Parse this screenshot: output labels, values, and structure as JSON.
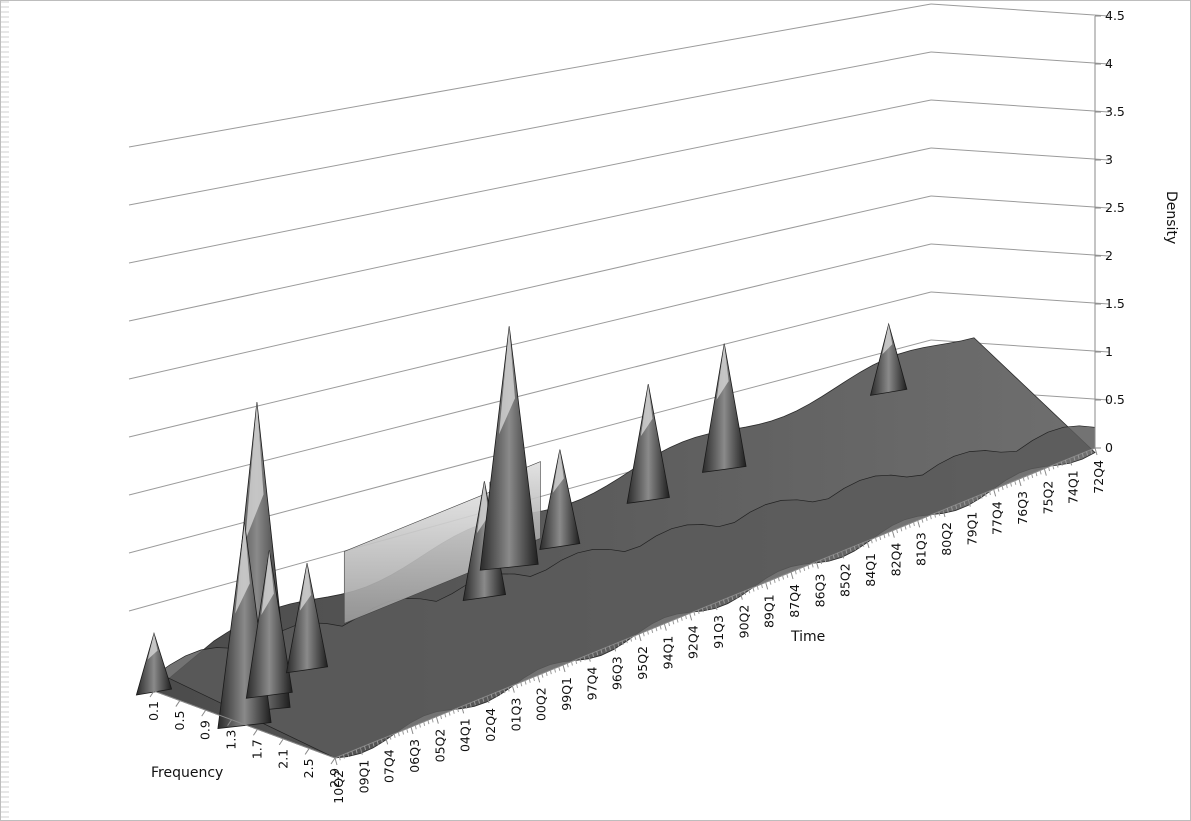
{
  "chart_data": {
    "type": "surface3d",
    "title": "",
    "xlabel": "Frequency",
    "ylabel": "Time",
    "zlabel": "Density",
    "zlim": [
      0,
      4.5
    ],
    "z_ticks": [
      "0",
      "0.5",
      "1",
      "1.5",
      "2",
      "2.5",
      "3",
      "3.5",
      "4",
      "4.5"
    ],
    "frequency_ticks": [
      "0.1",
      "0.5",
      "0.9",
      "1.3",
      "1.7",
      "2.1",
      "2.5",
      "2.9"
    ],
    "time_ticks": [
      "10Q2",
      "09Q1",
      "07Q4",
      "06Q3",
      "05Q2",
      "04Q1",
      "02Q4",
      "01Q3",
      "00Q2",
      "99Q1",
      "97Q4",
      "96Q3",
      "95Q2",
      "94Q1",
      "92Q4",
      "91Q3",
      "90Q2",
      "89Q1",
      "87Q4",
      "86Q3",
      "85Q2",
      "84Q1",
      "82Q4",
      "81Q3",
      "80Q2",
      "79Q1",
      "77Q4",
      "76Q3",
      "75Q2",
      "74Q1",
      "72Q4"
    ],
    "peaks": [
      {
        "frequency": 0.1,
        "time": "10Q2",
        "density": 0.6
      },
      {
        "frequency": 1.3,
        "time": "09Q1",
        "density": 3.2
      },
      {
        "frequency": 1.5,
        "time": "08Q3",
        "density": 2.1
      },
      {
        "frequency": 1.1,
        "time": "07Q4",
        "density": 1.5
      },
      {
        "frequency": 0.9,
        "time": "05Q2",
        "density": 1.1
      },
      {
        "frequency": 0.9,
        "time": "96Q3",
        "density": 1.2
      },
      {
        "frequency": 0.5,
        "time": "94Q1",
        "density": 2.5
      },
      {
        "frequency": 0.5,
        "time": "91Q3",
        "density": 1.0
      },
      {
        "frequency": 0.3,
        "time": "86Q3",
        "density": 1.2
      },
      {
        "frequency": 0.3,
        "time": "82Q4",
        "density": 1.3
      },
      {
        "frequency": 0.1,
        "time": "74Q1",
        "density": 0.7
      }
    ]
  }
}
